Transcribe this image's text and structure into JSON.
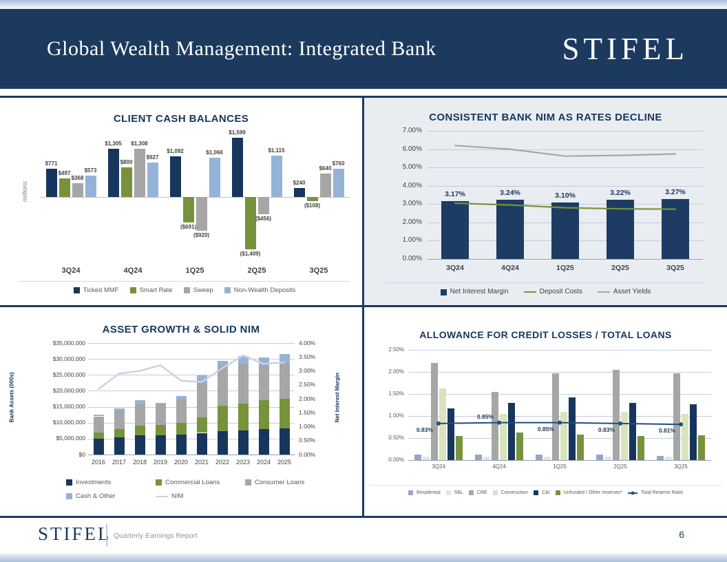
{
  "header": {
    "title": "Global Wealth Management: Integrated Bank",
    "logo": "STIFEL"
  },
  "footer": {
    "logo": "STIFEL",
    "subtitle": "Quarterly Earnings Report",
    "page_number": "6"
  },
  "colors": {
    "navy": "#17365d",
    "header_navy": "#1c3a5e",
    "green": "#76933c",
    "gray": "#a6a6a6",
    "light_blue": "#95b3d7",
    "panel_background": "#e9edf2",
    "line_navy": "#1f4e79"
  },
  "chart_data": [
    {
      "name": "client-cash-balances",
      "type": "bar",
      "title": "CLIENT CASH BALANCES",
      "ylabel": "millions",
      "categories": [
        "3Q24",
        "4Q24",
        "1Q25",
        "2Q25",
        "3Q25"
      ],
      "legend_position": "bottom",
      "grid": false,
      "series": [
        {
          "name": "Ticked MMF",
          "color": "#17365d",
          "values": [
            771,
            1305,
            1092,
            1599,
            240
          ],
          "labels": [
            "$771",
            "$1,305",
            "$1,092",
            "$1,599",
            "$240"
          ]
        },
        {
          "name": "Smart Rate",
          "color": "#76933c",
          "values": [
            497,
            800,
            -691,
            -1409,
            -108
          ],
          "labels": [
            "$497",
            "$800",
            "($691)",
            "($1,409)",
            "($108)"
          ]
        },
        {
          "name": "Sweep",
          "color": "#a6a6a6",
          "values": [
            368,
            1308,
            -920,
            -456,
            640
          ],
          "labels": [
            "$368",
            "$1,308",
            "($920)",
            "($456)",
            "$640"
          ]
        },
        {
          "name": "Non-Wealth Deposits",
          "color": "#95b3d7",
          "values": [
            573,
            927,
            1066,
            1115,
            760
          ],
          "labels": [
            "$573",
            "$927",
            "$1,066",
            "$1,115",
            "$760"
          ]
        }
      ]
    },
    {
      "name": "consistent-bank-nim",
      "type": "bar-line",
      "title": "CONSISTENT BANK NIM AS RATES DECLINE",
      "categories": [
        "3Q24",
        "4Q24",
        "1Q25",
        "2Q25",
        "3Q25"
      ],
      "yticks": [
        "7.00%",
        "6.00%",
        "5.00%",
        "4.00%",
        "3.00%",
        "2.00%",
        "1.00%",
        "0.00%"
      ],
      "ymax": 7,
      "grid": true,
      "legend_position": "bottom",
      "series": [
        {
          "name": "Net Interest Margin",
          "type": "bar",
          "color": "#1e3c63",
          "values": [
            3.17,
            3.24,
            3.1,
            3.22,
            3.27
          ],
          "labels": [
            "3.17%",
            "3.24%",
            "3.10%",
            "3.22%",
            "3.27%"
          ]
        },
        {
          "name": "Deposit Costs",
          "type": "line",
          "color": "#76933c",
          "values": [
            3.05,
            2.95,
            2.8,
            2.74,
            2.72
          ]
        },
        {
          "name": "Asset Yields",
          "type": "line",
          "color": "#a6a6a6",
          "values": [
            6.2,
            6.0,
            5.62,
            5.66,
            5.74
          ]
        }
      ]
    },
    {
      "name": "asset-growth-solid-nim",
      "type": "stacked-bar-line",
      "title": "ASSET GROWTH & SOLID NIM",
      "ylabel_left": "Bank Assets (000s)",
      "ylabel_right": "Net Interest Margin",
      "categories": [
        "2016",
        "2017",
        "2018",
        "2019",
        "2020",
        "2021",
        "2022",
        "2023",
        "2024",
        "2025"
      ],
      "yticks_left": [
        "$35,000,000",
        "$30,000,000",
        "$25,000,000",
        "$20,000,000",
        "$15,000,000",
        "$10,000,000",
        "$5,000,000",
        "$0"
      ],
      "yticks_right": [
        "4.00%",
        "3.50%",
        "3.00%",
        "2.50%",
        "2.00%",
        "1.50%",
        "1.00%",
        "0.50%",
        "0.00%"
      ],
      "ymax_left": 35000000,
      "ymax_right": 4,
      "grid": true,
      "legend_position": "bottom",
      "series": [
        {
          "name": "Investments",
          "color": "#17365d",
          "values": [
            5000000,
            5500000,
            6000000,
            6000000,
            6300000,
            6800000,
            7300000,
            7500000,
            8000000,
            8300000
          ]
        },
        {
          "name": "Commercial Loans",
          "color": "#76933c",
          "values": [
            2000000,
            2500000,
            3000000,
            3300000,
            3700000,
            4800000,
            8000000,
            8500000,
            9000000,
            9200000
          ]
        },
        {
          "name": "Consumer Loans",
          "color": "#a6a6a6",
          "values": [
            5000000,
            5800000,
            6800000,
            6500000,
            7300000,
            11000000,
            12500000,
            12500000,
            11000000,
            11200000
          ]
        },
        {
          "name": "Cash & Other",
          "color": "#95b3d7",
          "values": [
            500000,
            700000,
            1200000,
            500000,
            1000000,
            2200000,
            1500000,
            2500000,
            2500000,
            2800000
          ]
        }
      ],
      "nim_line": {
        "name": "NIM",
        "color": "#c9d3e2",
        "values": [
          2.35,
          2.9,
          3.0,
          3.2,
          2.65,
          2.6,
          3.1,
          3.55,
          3.25,
          3.3
        ]
      }
    },
    {
      "name": "allowance-for-credit-losses",
      "type": "bar-line",
      "title": "ALLOWANCE FOR CREDIT LOSSES / TOTAL LOANS",
      "categories": [
        "3Q24",
        "4Q24",
        "1Q25",
        "2Q25",
        "3Q25"
      ],
      "yticks": [
        "2.50%",
        "2.00%",
        "1.50%",
        "1.00%",
        "0.50%",
        "0.00%"
      ],
      "ymax": 2.5,
      "grid": true,
      "legend_position": "bottom",
      "series": [
        {
          "name": "Residential",
          "color": "#97a6c6",
          "values": [
            0.12,
            0.12,
            0.12,
            0.13,
            0.1
          ]
        },
        {
          "name": "SBL",
          "color": "#dce6f1",
          "values": [
            0.08,
            0.08,
            0.08,
            0.08,
            0.08
          ]
        },
        {
          "name": "CRE",
          "color": "#a6a6a6",
          "values": [
            2.2,
            1.55,
            1.97,
            2.05,
            1.97
          ]
        },
        {
          "name": "Construction",
          "color": "#d7e4bc",
          "values": [
            1.63,
            1.05,
            1.1,
            1.1,
            1.05
          ]
        },
        {
          "name": "C&I",
          "color": "#17365d",
          "values": [
            1.17,
            1.3,
            1.43,
            1.3,
            1.27
          ]
        },
        {
          "name": "Unfunded / Other reserves*",
          "color": "#76933c",
          "values": [
            0.55,
            0.62,
            0.58,
            0.55,
            0.57
          ]
        }
      ],
      "line": {
        "name": "Total Reserve Ratio",
        "color": "#1f4e79",
        "values": [
          0.83,
          0.85,
          0.85,
          0.83,
          0.81
        ],
        "labels": [
          "0.83%",
          "0.85%",
          "0.85%",
          "0.83%",
          "0.81%"
        ],
        "label_positions": [
          "below",
          "above",
          "below",
          "below",
          "below"
        ]
      }
    }
  ]
}
